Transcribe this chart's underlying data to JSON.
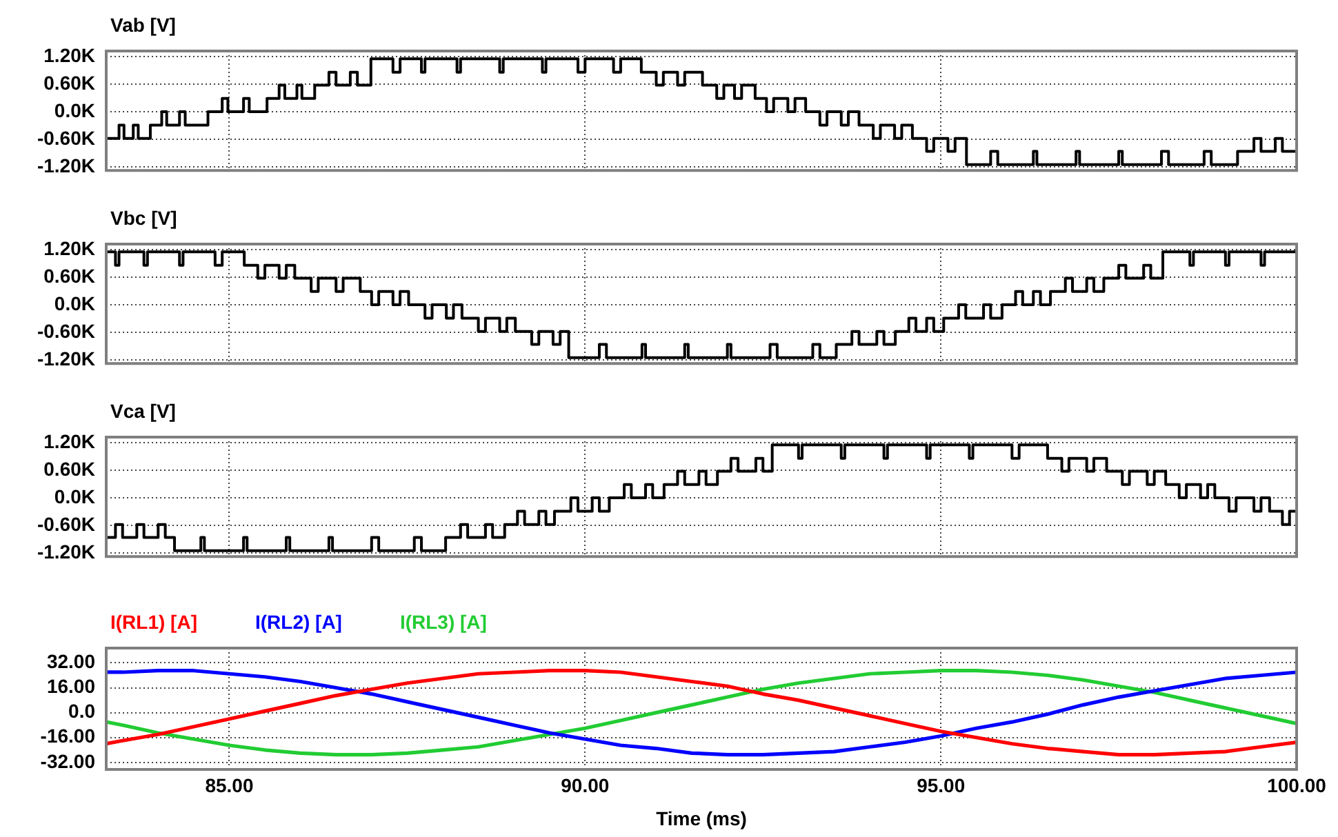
{
  "chart_data": [
    {
      "type": "step",
      "title": "Vab [V]",
      "color": "#000000",
      "x": [
        83.27,
        83.45,
        83.52,
        83.65,
        83.72,
        83.89,
        84.05,
        84.12,
        84.3,
        84.38,
        84.7,
        84.9,
        84.98,
        85.2,
        85.28,
        85.53,
        85.7,
        85.78,
        85.95,
        86.02,
        86.2,
        86.4,
        86.5,
        86.7,
        86.8,
        86.99,
        87.3,
        87.4,
        87.7,
        87.75,
        88.2,
        88.25,
        88.8,
        88.85,
        89.4,
        89.45,
        89.9,
        90.0,
        90.4,
        90.5,
        90.79,
        91.0,
        91.1,
        91.3,
        91.4,
        91.65,
        91.85,
        91.95,
        92.1,
        92.2,
        92.39,
        92.55,
        92.65,
        92.85,
        92.95,
        93.1,
        93.3,
        93.4,
        93.6,
        93.7,
        93.85,
        94.05,
        94.15,
        94.35,
        94.45,
        94.6,
        94.8,
        94.9,
        95.1,
        95.2,
        95.36,
        95.7,
        95.8,
        96.3,
        96.35,
        96.9,
        96.95,
        97.5,
        97.55,
        98.1,
        98.2,
        98.7,
        98.8,
        99.17,
        99.4,
        99.5,
        99.7,
        99.8,
        100
      ],
      "values": [
        -580,
        -290,
        -580,
        -290,
        -580,
        -290,
        0,
        -290,
        0,
        -290,
        0,
        290,
        0,
        290,
        0,
        290,
        580,
        290,
        580,
        290,
        580,
        860,
        580,
        860,
        580,
        1150,
        860,
        1150,
        860,
        1150,
        860,
        1150,
        860,
        1150,
        860,
        1150,
        860,
        1150,
        860,
        1150,
        860,
        580,
        860,
        580,
        860,
        580,
        290,
        580,
        290,
        580,
        290,
        0,
        290,
        0,
        290,
        0,
        -290,
        0,
        -290,
        0,
        -290,
        -580,
        -290,
        -580,
        -290,
        -580,
        -860,
        -580,
        -860,
        -580,
        -1150,
        -860,
        -1150,
        -860,
        -1150,
        -860,
        -1150,
        -860,
        -1150,
        -860,
        -1150,
        -860,
        -1150,
        -860,
        -580,
        -860,
        -580,
        -860,
        -860
      ],
      "xlim": [
        83.27,
        100
      ],
      "xticks": [
        85,
        90,
        95,
        100
      ],
      "ylim": [
        -1275,
        1320
      ],
      "yticks": [
        {
          "value": 1200,
          "label": "1.20K"
        },
        {
          "value": 600,
          "label": "0.60K"
        },
        {
          "value": 0,
          "label": "0.0K"
        },
        {
          "value": -600,
          "label": "-0.60K"
        },
        {
          "value": -1200,
          "label": "-1.20K"
        }
      ],
      "grid": true,
      "tick_labels": "y"
    },
    {
      "type": "step",
      "title": "Vbc [V]",
      "color": "#000000",
      "x": [
        83.27,
        83.4,
        83.45,
        83.8,
        83.85,
        84.3,
        84.35,
        84.8,
        84.9,
        85.21,
        85.4,
        85.5,
        85.7,
        85.8,
        85.92,
        86.15,
        86.25,
        86.5,
        86.6,
        86.84,
        87.0,
        87.1,
        87.3,
        87.4,
        87.52,
        87.75,
        87.85,
        88.05,
        88.15,
        88.27,
        88.5,
        88.6,
        88.8,
        88.9,
        89.02,
        89.25,
        89.35,
        89.55,
        89.65,
        89.77,
        90.2,
        90.3,
        90.8,
        90.85,
        91.4,
        91.45,
        92.0,
        92.05,
        92.6,
        92.7,
        93.2,
        93.3,
        93.53,
        93.75,
        93.85,
        94.1,
        94.2,
        94.36,
        94.55,
        94.65,
        94.8,
        94.9,
        95.04,
        95.25,
        95.35,
        95.6,
        95.7,
        95.86,
        96.05,
        96.15,
        96.3,
        96.4,
        96.54,
        96.75,
        96.85,
        97.05,
        97.15,
        97.29,
        97.5,
        97.6,
        97.85,
        97.95,
        98.12,
        98.5,
        98.55,
        99.0,
        99.05,
        99.5,
        99.55,
        100
      ],
      "values": [
        1150,
        860,
        1150,
        860,
        1150,
        860,
        1150,
        860,
        1150,
        860,
        580,
        860,
        580,
        860,
        580,
        290,
        580,
        290,
        580,
        290,
        0,
        290,
        0,
        290,
        0,
        -290,
        0,
        -290,
        0,
        -290,
        -580,
        -290,
        -580,
        -290,
        -580,
        -860,
        -580,
        -860,
        -580,
        -1150,
        -860,
        -1150,
        -860,
        -1150,
        -860,
        -1150,
        -860,
        -1150,
        -860,
        -1150,
        -860,
        -1150,
        -860,
        -580,
        -860,
        -580,
        -860,
        -580,
        -290,
        -580,
        -290,
        -580,
        -290,
        0,
        -290,
        0,
        -290,
        0,
        290,
        0,
        290,
        0,
        290,
        580,
        290,
        580,
        290,
        580,
        860,
        580,
        860,
        580,
        1150,
        860,
        1150,
        860,
        1150,
        860,
        1150,
        1150
      ],
      "xlim": [
        83.27,
        100
      ],
      "xticks": [
        85,
        90,
        95,
        100
      ],
      "ylim": [
        -1275,
        1320
      ],
      "yticks": [
        {
          "value": 1200,
          "label": "1.20K"
        },
        {
          "value": 600,
          "label": "0.60K"
        },
        {
          "value": 0,
          "label": "0.0K"
        },
        {
          "value": -600,
          "label": "-0.60K"
        },
        {
          "value": -1200,
          "label": "-1.20K"
        }
      ],
      "grid": true,
      "tick_labels": "y"
    },
    {
      "type": "step",
      "title": "Vca [V]",
      "color": "#000000",
      "x": [
        83.27,
        83.4,
        83.5,
        83.7,
        83.8,
        84.0,
        84.1,
        84.23,
        84.6,
        84.65,
        85.2,
        85.25,
        85.8,
        85.85,
        86.4,
        86.45,
        87.0,
        87.1,
        87.6,
        87.7,
        88.04,
        88.25,
        88.35,
        88.6,
        88.7,
        88.87,
        89.05,
        89.15,
        89.35,
        89.45,
        89.57,
        89.8,
        89.9,
        90.1,
        90.2,
        90.34,
        90.55,
        90.65,
        90.85,
        90.95,
        91.11,
        91.3,
        91.4,
        91.6,
        91.7,
        91.86,
        92.05,
        92.15,
        92.4,
        92.5,
        92.63,
        93.0,
        93.05,
        93.6,
        93.65,
        94.2,
        94.25,
        94.8,
        94.85,
        95.4,
        95.45,
        96.0,
        96.1,
        96.5,
        96.7,
        96.8,
        97.05,
        97.15,
        97.33,
        97.55,
        97.65,
        97.9,
        98.0,
        98.16,
        98.35,
        98.45,
        98.65,
        98.75,
        98.85,
        99.05,
        99.15,
        99.4,
        99.5,
        99.62,
        99.8,
        99.9,
        100
      ],
      "values": [
        -860,
        -580,
        -860,
        -580,
        -860,
        -580,
        -860,
        -1150,
        -860,
        -1150,
        -860,
        -1150,
        -860,
        -1150,
        -860,
        -1150,
        -860,
        -1150,
        -860,
        -1150,
        -860,
        -580,
        -860,
        -580,
        -860,
        -580,
        -290,
        -580,
        -290,
        -580,
        -290,
        0,
        -290,
        0,
        -290,
        0,
        290,
        0,
        290,
        0,
        290,
        580,
        290,
        580,
        290,
        580,
        860,
        580,
        860,
        580,
        1150,
        860,
        1150,
        860,
        1150,
        860,
        1150,
        860,
        1150,
        860,
        1150,
        860,
        1150,
        860,
        580,
        860,
        580,
        860,
        580,
        290,
        580,
        290,
        580,
        290,
        0,
        290,
        0,
        290,
        0,
        -290,
        0,
        -290,
        0,
        -290,
        -580,
        -290,
        -580
      ],
      "xlim": [
        83.27,
        100
      ],
      "xticks": [
        85,
        90,
        95,
        100
      ],
      "ylim": [
        -1275,
        1320
      ],
      "yticks": [
        {
          "value": 1200,
          "label": "1.20K"
        },
        {
          "value": 600,
          "label": "0.60K"
        },
        {
          "value": 0,
          "label": "0.0K"
        },
        {
          "value": -600,
          "label": "-0.60K"
        },
        {
          "value": -1200,
          "label": "-1.20K"
        }
      ],
      "grid": true,
      "tick_labels": "y"
    },
    {
      "type": "line",
      "xlabel": "Time (ms)",
      "legend": "top left",
      "x": [
        83.27,
        83.5,
        84,
        84.5,
        85,
        85.5,
        86,
        86.5,
        87,
        87.5,
        88,
        88.5,
        89,
        89.5,
        90,
        90.5,
        91,
        91.5,
        92,
        92.5,
        93,
        93.5,
        94,
        94.5,
        95,
        95.5,
        96,
        96.5,
        97,
        97.5,
        98,
        98.5,
        99,
        99.5,
        100
      ],
      "series": [
        {
          "name": "I(RL1) [A]",
          "color": "#ff0000",
          "values": [
            -20,
            -18,
            -14,
            -9,
            -4,
            1,
            6,
            11,
            15,
            19,
            22,
            25,
            26,
            27,
            27,
            26,
            23,
            20,
            17,
            12,
            8,
            3,
            -2,
            -7,
            -12,
            -16,
            -20,
            -23,
            -25,
            -27,
            -27,
            -26,
            -25,
            -22,
            -19
          ]
        },
        {
          "name": "I(RL2) [A]",
          "color": "#0000ff",
          "values": [
            26,
            26,
            27,
            27,
            25,
            23,
            20,
            16,
            12,
            7,
            2,
            -3,
            -8,
            -13,
            -17,
            -21,
            -23,
            -26,
            -27,
            -27,
            -26,
            -25,
            -22,
            -19,
            -15,
            -10,
            -6,
            -1,
            5,
            10,
            14,
            18,
            22,
            24,
            26
          ]
        },
        {
          "name": "I(RL3) [A]",
          "color": "#22cc33",
          "values": [
            -6,
            -8,
            -13,
            -17,
            -21,
            -24,
            -26,
            -27,
            -27,
            -26,
            -24,
            -22,
            -18,
            -14,
            -10,
            -5,
            0,
            5,
            10,
            15,
            19,
            22,
            25,
            26,
            27,
            27,
            26,
            24,
            21,
            17,
            13,
            8,
            3,
            -2,
            -7
          ]
        }
      ],
      "xlim": [
        83.27,
        100
      ],
      "xticks": [
        {
          "value": 85,
          "label": "85.00"
        },
        {
          "value": 90,
          "label": "90.00"
        },
        {
          "value": 95,
          "label": "95.00"
        },
        {
          "value": 100,
          "label": "100.00"
        }
      ],
      "ylim": [
        -36.5,
        41.5
      ],
      "yticks": [
        {
          "value": 32,
          "label": "32.00"
        },
        {
          "value": 16,
          "label": "16.00"
        },
        {
          "value": 0,
          "label": "0.0"
        },
        {
          "value": -16,
          "label": "-16.00"
        },
        {
          "value": -32,
          "label": "-32.00"
        }
      ],
      "grid": true
    }
  ]
}
